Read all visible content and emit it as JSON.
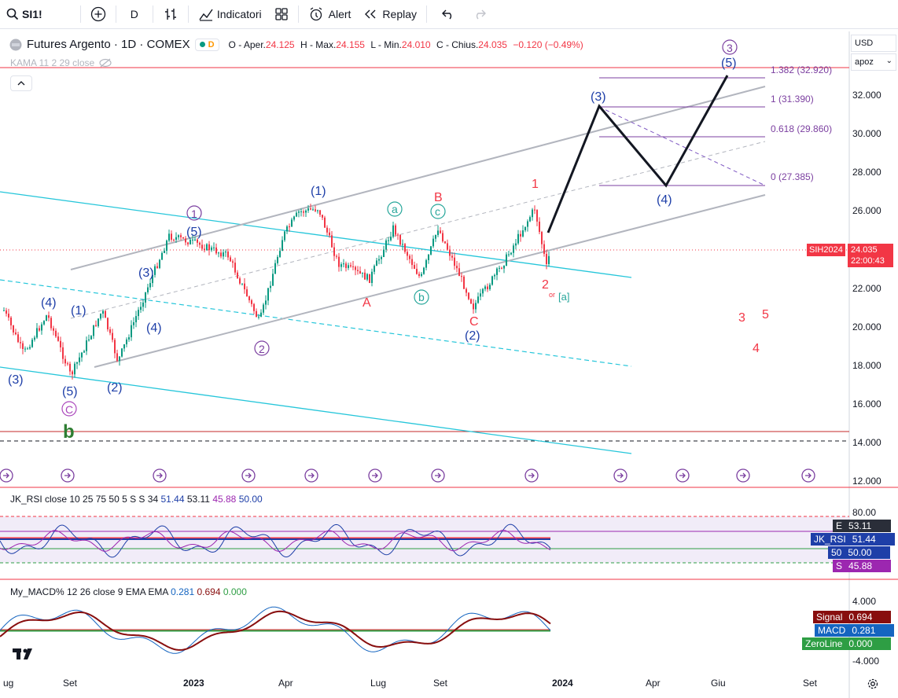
{
  "toolbar": {
    "symbol": "SI1!",
    "interval": "D",
    "indicators_label": "Indicatori",
    "alert_label": "Alert",
    "replay_label": "Replay"
  },
  "legend": {
    "title": "Futures Argento · 1D · COMEX",
    "status_letter": "D",
    "open_label": "O - Aper.",
    "open": "24.125",
    "high_label": "H - Max.",
    "high": "24.155",
    "low_label": "L - Min.",
    "low": "24.010",
    "close_label": "C - Chius.",
    "close": "24.035",
    "change": "−0.120 (−0.49%)",
    "kama": "KAMA 11 2 29 close"
  },
  "right_panel": {
    "currency": "USD",
    "scale": "apoz",
    "symbol_tag": "SIH2024",
    "price": "24.035",
    "countdown": "22:00:43"
  },
  "price_axis": [
    "32.000",
    "30.000",
    "28.000",
    "26.000",
    "24.000",
    "22.000",
    "20.000",
    "18.000",
    "16.000",
    "14.000",
    "12.000"
  ],
  "fib_levels": [
    {
      "label": "1.382 (32.920)"
    },
    {
      "label": "1 (31.390)"
    },
    {
      "label": "0.618 (29.860)"
    },
    {
      "label": "0 (27.385)"
    }
  ],
  "waves": {
    "blue": [
      "(3)",
      "(4)",
      "(1)",
      "(5)",
      "(2)",
      "(3)",
      "(4)",
      "(5)",
      "(1)",
      "(2)",
      "(3)",
      "(4)",
      "(5)"
    ],
    "purple": [
      "C",
      "1",
      "2",
      "3"
    ],
    "teal": [
      "a",
      "b",
      "c",
      "[a]"
    ],
    "red": [
      "A",
      "B",
      "C",
      "1",
      "2",
      "3",
      "4",
      "5"
    ],
    "green": "b",
    "or_text": "or"
  },
  "rsi": {
    "label": "JK_RSI close 10 25 75 50 5 S S 34",
    "v1": "51.44",
    "v2": "53.11",
    "v3": "45.88",
    "v4": "50.00",
    "axis": [
      "80.00"
    ],
    "tags": [
      {
        "key": "E",
        "value": "53.11",
        "color": "#2a2e39"
      },
      {
        "key": "JK_RSI",
        "value": "51.44",
        "color": "#1e3fa8"
      },
      {
        "key": "50",
        "value": "50.00",
        "color": "#1e3fa8"
      },
      {
        "key": "S",
        "value": "45.88",
        "color": "#9c27b0"
      }
    ]
  },
  "macd": {
    "label": "My_MACD% 12 26 close 9 EMA EMA",
    "v1": "0.281",
    "v2": "0.694",
    "v3": "0.000",
    "axis": [
      "4.000",
      "-4.000"
    ],
    "tags": [
      {
        "key": "Signal",
        "value": "0.694",
        "color": "#880e0e"
      },
      {
        "key": "MACD",
        "value": "0.281",
        "color": "#1565c0"
      },
      {
        "key": "ZeroLine",
        "value": "0.000",
        "color": "#2e9e44"
      }
    ]
  },
  "x_axis": [
    "ug",
    "Set",
    "2023",
    "Apr",
    "Lug",
    "Set",
    "2024",
    "Apr",
    "Giu",
    "Set"
  ],
  "colors": {
    "blue": "#1e3fa8",
    "purple": "#7b3fa0",
    "red": "#f23645",
    "teal": "#26a69a",
    "green": "#2e7d32",
    "cyan": "#26c6da"
  }
}
